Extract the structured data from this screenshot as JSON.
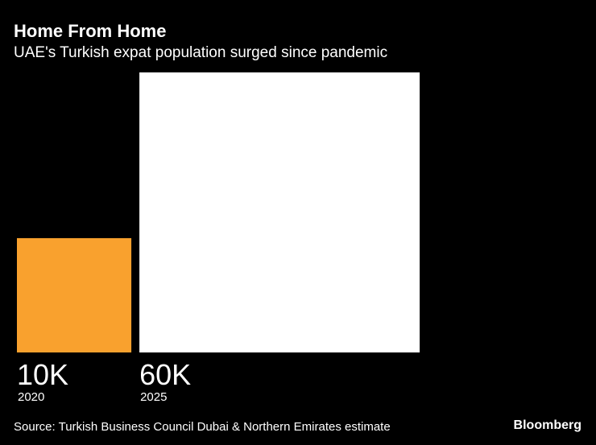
{
  "chart_data": {
    "type": "square",
    "title": "Home From Home",
    "subtitle": "UAE's Turkish expat population surged since pandemic",
    "categories": [
      "2020",
      "2025"
    ],
    "values": [
      10000,
      60000
    ],
    "value_labels": [
      "10K",
      "60K"
    ],
    "colors": [
      "#f9a12e",
      "#ffffff"
    ],
    "source": "Source: Turkish Business Council Dubai & Northern Emirates estimate",
    "brand": "Bloomberg"
  }
}
